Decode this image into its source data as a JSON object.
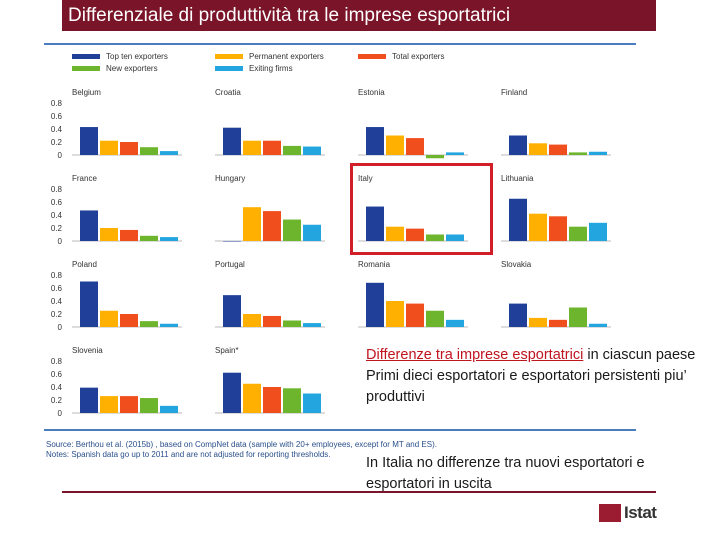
{
  "slide": {
    "title": "Differenziale di produttività tra le imprese esportatrici",
    "note_heading": "Differenze tra imprese esportatrici",
    "note_heading_suffix": " in ciascun paese",
    "note_line2": "Primi dieci esportatori e esportatori persistenti piu’ produttivi",
    "note_line3": "In Italia no differenze tra nuovi esportatori e esportatori in uscita",
    "logo_text": "Istat",
    "source": "Source: Berthou et al. (2015b) , based on CompNet data (sample with 20+ employees, except for MT and ES).",
    "notes": "Notes: Spanish data go up to 2011 and are not adjusted for reporting thresholds."
  },
  "chart_data": {
    "type": "bar",
    "ylim": [
      0,
      0.8
    ],
    "yticks": [
      "0.8",
      "0.6",
      "0.4",
      "0.2",
      "0"
    ],
    "series": [
      {
        "name": "Top ten exporters",
        "color": "#1f3f99"
      },
      {
        "name": "Permanent exporters",
        "color": "#ffb000"
      },
      {
        "name": "Total exporters",
        "color": "#f04e1c"
      },
      {
        "name": "New exporters",
        "color": "#6cb52d"
      },
      {
        "name": "Exiting firms",
        "color": "#23a6e0"
      }
    ],
    "panels": [
      {
        "name": "Belgium",
        "values": [
          0.43,
          0.22,
          0.2,
          0.12,
          0.06
        ]
      },
      {
        "name": "Croatia",
        "values": [
          0.42,
          0.22,
          0.22,
          0.14,
          0.13
        ]
      },
      {
        "name": "Estonia",
        "values": [
          0.43,
          0.3,
          0.26,
          -0.05,
          0.04
        ]
      },
      {
        "name": "Finland",
        "values": [
          0.3,
          0.18,
          0.16,
          0.04,
          0.05
        ]
      },
      {
        "name": "France",
        "values": [
          0.47,
          0.2,
          0.17,
          0.08,
          0.06
        ]
      },
      {
        "name": "Hungary",
        "values": [
          0.0,
          0.52,
          0.46,
          0.33,
          0.25
        ]
      },
      {
        "name": "Italy",
        "values": [
          0.53,
          0.22,
          0.19,
          0.1,
          0.1
        ]
      },
      {
        "name": "Lithuania",
        "values": [
          0.65,
          0.42,
          0.38,
          0.22,
          0.28
        ]
      },
      {
        "name": "Poland",
        "values": [
          0.7,
          0.25,
          0.2,
          0.09,
          0.05
        ]
      },
      {
        "name": "Portugal",
        "values": [
          0.49,
          0.2,
          0.17,
          0.1,
          0.06
        ]
      },
      {
        "name": "Romania",
        "values": [
          0.68,
          0.4,
          0.36,
          0.25,
          0.11
        ]
      },
      {
        "name": "Slovakia",
        "values": [
          0.36,
          0.14,
          0.11,
          0.3,
          0.05
        ]
      },
      {
        "name": "Slovenia",
        "values": [
          0.39,
          0.26,
          0.26,
          0.23,
          0.11
        ]
      },
      {
        "name": "Spain*",
        "values": [
          0.62,
          0.45,
          0.4,
          0.38,
          0.3
        ]
      }
    ]
  }
}
